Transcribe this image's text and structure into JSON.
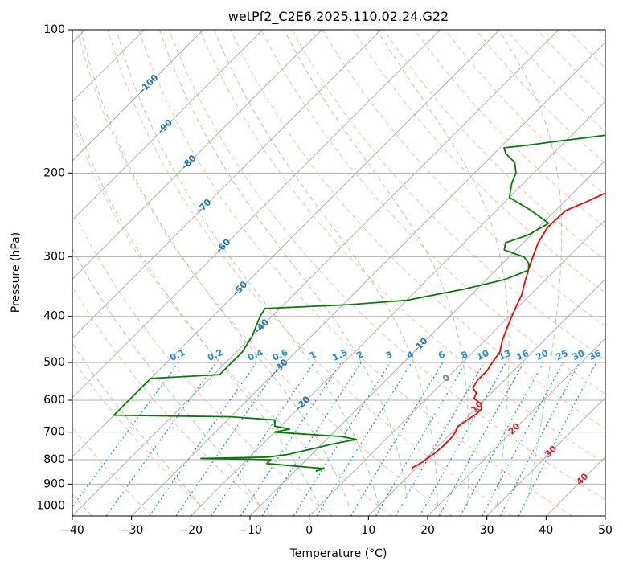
{
  "chart_data": {
    "type": "line",
    "title": "wetPf2_C2E6.2025.110.02.24.G22",
    "xlabel": "Temperature (°C)",
    "ylabel": "Pressure (hPa)",
    "xlim": [
      -40,
      50
    ],
    "ylim": [
      1050,
      100
    ],
    "y_scale": "log",
    "grid": true,
    "x_ticks": [
      -40,
      -30,
      -20,
      -10,
      0,
      10,
      20,
      30,
      40,
      50
    ],
    "y_ticks": [
      100,
      200,
      300,
      400,
      500,
      600,
      700,
      800,
      900,
      1000
    ],
    "skew_deg": 45,
    "isotherm_labels": [
      "-100",
      "-90",
      "-80",
      "-70",
      "-60",
      "-50",
      "-40",
      "-30",
      "-20",
      "-10",
      "0",
      "10",
      "20",
      "30",
      "40"
    ],
    "isotherm_label_values": [
      -100,
      -90,
      -80,
      -70,
      -60,
      -50,
      -40,
      -30,
      -20,
      -10,
      0,
      10,
      20,
      30,
      40
    ],
    "isotherm_label_pressures": [
      130,
      160,
      190,
      235,
      285,
      350,
      420,
      510,
      610,
      460,
      540,
      620,
      690,
      770,
      880
    ],
    "mixing_ratio_labels": [
      "0.1",
      "0.2",
      "0.4",
      "0.6",
      "1",
      "1.5",
      "2",
      "3",
      "4",
      "6",
      "8",
      "10",
      "13",
      "16",
      "20",
      "25",
      "30",
      "36"
    ],
    "mixing_ratio_values": [
      0.1,
      0.2,
      0.4,
      0.6,
      1,
      1.5,
      2,
      3,
      4,
      6,
      8,
      10,
      13,
      16,
      20,
      25,
      30,
      36
    ],
    "mixing_ratio_label_pressure": 500,
    "colors": {
      "temperature": "#ff0000",
      "dewpoint": "#008000",
      "isotherm_cold": "#1f77b4",
      "isotherm_warm": "#d62728",
      "isotherm_zero": "#7f7f7f",
      "mixing_ratio": "#1f8fe0",
      "dry_adiabat": "#f4a582",
      "moist_adiabat": "#7fbf7f",
      "dry_adiabat_outer": "#d2b48c",
      "grid": "#b0b0b0"
    },
    "series": [
      {
        "name": "",
        "key": "temperature",
        "points": [
          [
            9.5,
            840
          ],
          [
            9.3,
            830
          ],
          [
            10,
            810
          ],
          [
            10.5,
            780
          ],
          [
            10.8,
            750
          ],
          [
            10.8,
            720
          ],
          [
            10.5,
            700
          ],
          [
            10,
            680
          ],
          [
            10.5,
            660
          ],
          [
            11,
            640
          ],
          [
            11,
            625
          ],
          [
            10,
            610
          ],
          [
            8,
            595
          ],
          [
            7.5,
            580
          ],
          [
            6,
            565
          ],
          [
            5.5,
            545
          ],
          [
            5.5,
            520
          ],
          [
            5,
            500
          ],
          [
            4.5,
            475
          ],
          [
            3,
            450
          ],
          [
            1.5,
            420
          ],
          [
            0.5,
            400
          ],
          [
            -0.5,
            380
          ],
          [
            -1.5,
            360
          ],
          [
            -3,
            340
          ],
          [
            -4.5,
            320
          ],
          [
            -6,
            300
          ],
          [
            -7.5,
            280
          ],
          [
            -8.5,
            260
          ],
          [
            -8.3,
            240
          ],
          [
            -6.3,
            230
          ],
          [
            -2.5,
            210
          ],
          [
            0.2,
            200
          ],
          [
            4,
            185
          ],
          [
            7,
            170
          ],
          [
            9.5,
            155
          ],
          [
            11,
            145
          ],
          [
            13.5,
            130
          ],
          [
            16,
            120
          ],
          [
            18.5,
            112
          ],
          [
            20.5,
            105
          ],
          [
            22,
            100
          ]
        ]
      },
      {
        "name": "",
        "key": "dewpoint",
        "points": [
          [
            -6.5,
            845
          ],
          [
            -5.5,
            835
          ],
          [
            -16,
            815
          ],
          [
            -16,
            800
          ],
          [
            -28,
            795
          ],
          [
            -17,
            790
          ],
          [
            -14,
            780
          ],
          [
            -11,
            760
          ],
          [
            -8,
            740
          ],
          [
            -5,
            725
          ],
          [
            -8,
            715
          ],
          [
            -20,
            700
          ],
          [
            -18,
            690
          ],
          [
            -21,
            680
          ],
          [
            -22,
            660
          ],
          [
            -30,
            650
          ],
          [
            -50,
            645
          ],
          [
            -50,
            540
          ],
          [
            -39,
            530
          ],
          [
            -39,
            510
          ],
          [
            -39,
            495
          ],
          [
            -39,
            475
          ],
          [
            -40,
            440
          ],
          [
            -41,
            420
          ],
          [
            -42,
            400
          ],
          [
            -42.5,
            385
          ],
          [
            -29,
            378
          ],
          [
            -20,
            370
          ],
          [
            -12,
            350
          ],
          [
            -7,
            335
          ],
          [
            -4.5,
            320
          ],
          [
            -5.5,
            310
          ],
          [
            -7.5,
            300
          ],
          [
            -12,
            290
          ],
          [
            -13,
            280
          ],
          [
            -10.5,
            270
          ],
          [
            -9,
            255
          ],
          [
            -14,
            240
          ],
          [
            -20,
            225
          ],
          [
            -22,
            210
          ],
          [
            -23,
            200
          ],
          [
            -25,
            190
          ],
          [
            -28,
            182
          ],
          [
            -29.3,
            177
          ],
          [
            -26,
            175
          ],
          [
            -22,
            172
          ],
          [
            -12,
            165
          ],
          [
            -7,
            160
          ],
          [
            -5,
            150
          ],
          [
            -2,
            140
          ],
          [
            1,
            130
          ],
          [
            4,
            120
          ],
          [
            6.5,
            110
          ],
          [
            9,
            100
          ]
        ]
      }
    ]
  }
}
